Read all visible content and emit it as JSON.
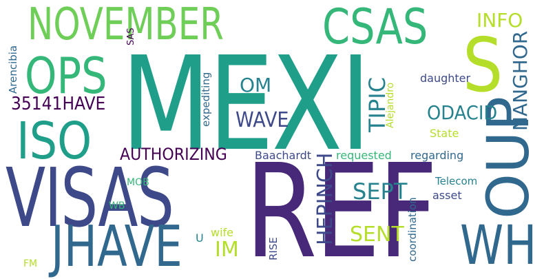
{
  "palette": {
    "lime": "#b5de2b",
    "light_green": "#6ece58",
    "green": "#35b779",
    "teal": "#1f9e89",
    "teal_blue": "#26828e",
    "blue": "#31688e",
    "indigo": "#3e4989",
    "purple": "#482878",
    "dark_purple": "#440154"
  },
  "words": {
    "mexi": "MEXI",
    "ref": "REF",
    "visas": "VISAS",
    "november": "NOVEMBER",
    "csas": "CSAS",
    "ops": "OPS",
    "iso": "ISO",
    "s": "S",
    "jhave": "JHAVE",
    "wh": "WH",
    "oup": "OUP",
    "info": "INFO",
    "have35141": "35141HAVE",
    "authorizing": "AUTHORIZING",
    "wave": "WAVE",
    "om": "OM",
    "odacid": "ODACID",
    "tipic": "TIPIC",
    "nanghor": "NANGHOR",
    "hepinch": "HEPINCH",
    "sept": "SEPT",
    "sent": "SENT",
    "im": "IM",
    "daughter": "daughter",
    "state": "State",
    "alejandro": "Alejandro",
    "expediting": "expediting",
    "arencibia": "Arencibia",
    "sas": "SAS",
    "baachardt": "Baachardt",
    "requested": "requested",
    "regarding": "regarding",
    "telecom": "Telecom",
    "asset": "asset",
    "coordination": "coordination",
    "rise": "RISE",
    "mob": "MOB",
    "wb": "WB",
    "wife": "wife",
    "u": "U",
    "fm": "FM"
  }
}
